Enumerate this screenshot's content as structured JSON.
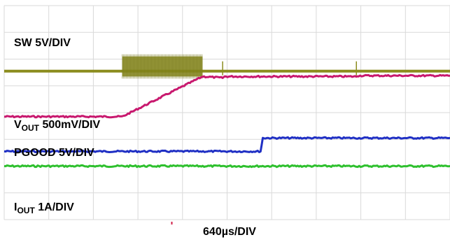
{
  "chart_data": {
    "type": "line",
    "xlabel": "640µs/DIV",
    "grid": true,
    "grid_divisions": {
      "x": 10,
      "y": 8
    },
    "x_range_div": [
      0,
      10
    ],
    "series": [
      {
        "name": "SW 5V/DIV",
        "label_main": "SW 5V/DIV",
        "label_sub": "",
        "label_tail": "",
        "color": "#8b8c1e",
        "kind": "switching",
        "baseline_div": 5.55,
        "burst_start_div": 2.65,
        "burst_end_div": 4.45,
        "burst_top_div": 6.1,
        "burst_bottom_div": 5.35,
        "spike_div": [
          4.9,
          7.9
        ]
      },
      {
        "name": "VOUT 500mV/DIV",
        "label_main": "V",
        "label_sub": "OUT",
        "label_tail": " 500mV/DIV",
        "color": "#c8186e",
        "kind": "ramp",
        "points": [
          [
            0,
            3.85
          ],
          [
            2.65,
            3.85
          ],
          [
            4.45,
            5.35
          ],
          [
            4.9,
            5.3
          ],
          [
            4.95,
            5.35
          ],
          [
            7.9,
            5.35
          ],
          [
            7.92,
            5.38
          ],
          [
            10,
            5.38
          ]
        ]
      },
      {
        "name": "PGOOD 5V/DIV",
        "label_main": "PGOOD 5V/DIV",
        "label_sub": "",
        "label_tail": "",
        "color": "#1f2fc4",
        "kind": "step",
        "points": [
          [
            0,
            2.55
          ],
          [
            5.75,
            2.55
          ],
          [
            5.8,
            3.05
          ],
          [
            10,
            3.05
          ]
        ]
      },
      {
        "name": "IOUT 1A/DIV",
        "label_main": "I",
        "label_sub": "OUT",
        "label_tail": " 1A/DIV",
        "color": "#2ec02e",
        "kind": "flat",
        "points": [
          [
            0,
            2.0
          ],
          [
            10,
            2.0
          ]
        ]
      }
    ]
  }
}
